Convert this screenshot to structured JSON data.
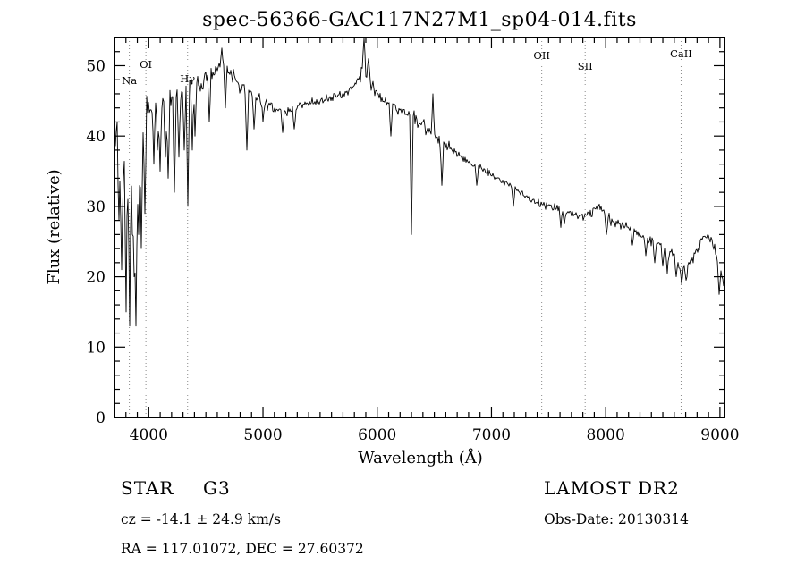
{
  "title": "spec-56366-GAC117N27M1_sp04-014.fits",
  "chart_data": {
    "type": "line",
    "title": "spec-56366-GAC117N27M1_sp04-014.fits",
    "xlabel": "Wavelength (Å)",
    "ylabel": "Flux (relative)",
    "xlim": [
      3700,
      9040
    ],
    "ylim": [
      0,
      54
    ],
    "x_ticks": [
      4000,
      5000,
      6000,
      7000,
      8000,
      9000
    ],
    "y_ticks": [
      0,
      10,
      20,
      30,
      40,
      50
    ],
    "x_minor_step": 100,
    "y_minor_step": 2,
    "grid": "off",
    "legend": "none",
    "line_color": "#000000",
    "marker_line_style": "dotted-gray",
    "line_markers": [
      {
        "label": "Na",
        "wavelength": 3830,
        "label_dy": 52
      },
      {
        "label": "OI",
        "wavelength": 3975,
        "label_dy": 34
      },
      {
        "label": "Hγ",
        "wavelength": 4340,
        "label_dy": 50
      },
      {
        "label": "OII",
        "wavelength": 7440,
        "label_dy": 24
      },
      {
        "label": "SII",
        "wavelength": 7820,
        "label_dy": 36
      },
      {
        "label": "CaII",
        "wavelength": 8660,
        "label_dy": 22
      }
    ],
    "continuum": [
      [
        3700,
        44
      ],
      [
        3720,
        40
      ],
      [
        3750,
        38
      ],
      [
        3780,
        36
      ],
      [
        3800,
        38
      ],
      [
        3830,
        42
      ],
      [
        3860,
        38
      ],
      [
        3900,
        33
      ],
      [
        3930,
        40
      ],
      [
        3960,
        42
      ],
      [
        4000,
        44
      ],
      [
        4050,
        45
      ],
      [
        4100,
        46
      ],
      [
        4150,
        44
      ],
      [
        4200,
        45
      ],
      [
        4250,
        46
      ],
      [
        4300,
        46
      ],
      [
        4350,
        47
      ],
      [
        4400,
        48
      ],
      [
        4450,
        47
      ],
      [
        4500,
        48
      ],
      [
        4550,
        49
      ],
      [
        4600,
        50
      ],
      [
        4650,
        50
      ],
      [
        4700,
        49
      ],
      [
        4750,
        48
      ],
      [
        4800,
        47
      ],
      [
        4850,
        46
      ],
      [
        4900,
        46
      ],
      [
        4950,
        45
      ],
      [
        5000,
        45
      ],
      [
        5100,
        44
      ],
      [
        5200,
        43.5
      ],
      [
        5300,
        44
      ],
      [
        5400,
        44.5
      ],
      [
        5500,
        45
      ],
      [
        5600,
        45.5
      ],
      [
        5700,
        46
      ],
      [
        5800,
        47
      ],
      [
        5850,
        48
      ],
      [
        5880,
        50
      ],
      [
        5900,
        49
      ],
      [
        5950,
        47
      ],
      [
        6000,
        46
      ],
      [
        6100,
        44.5
      ],
      [
        6200,
        43.5
      ],
      [
        6300,
        43
      ],
      [
        6400,
        41.5
      ],
      [
        6500,
        40
      ],
      [
        6563,
        39
      ],
      [
        6600,
        38.5
      ],
      [
        6700,
        37.5
      ],
      [
        6800,
        36.5
      ],
      [
        6900,
        35.5
      ],
      [
        7000,
        34.5
      ],
      [
        7100,
        33.5
      ],
      [
        7200,
        32.5
      ],
      [
        7300,
        31.5
      ],
      [
        7400,
        30.5
      ],
      [
        7500,
        30
      ],
      [
        7600,
        29.5
      ],
      [
        7700,
        29
      ],
      [
        7800,
        28.5
      ],
      [
        7900,
        29.5
      ],
      [
        7950,
        30
      ],
      [
        8000,
        28.5
      ],
      [
        8100,
        27.5
      ],
      [
        8200,
        27
      ],
      [
        8300,
        26
      ],
      [
        8400,
        25
      ],
      [
        8500,
        24.5
      ],
      [
        8600,
        23
      ],
      [
        8650,
        21.5
      ],
      [
        8700,
        21
      ],
      [
        8750,
        22
      ],
      [
        8800,
        24
      ],
      [
        8850,
        25.5
      ],
      [
        8900,
        26
      ],
      [
        8950,
        24
      ],
      [
        9000,
        21
      ],
      [
        9040,
        18
      ]
    ],
    "features": [
      [
        3740,
        28
      ],
      [
        3762,
        21
      ],
      [
        3798,
        15
      ],
      [
        3820,
        31
      ],
      [
        3835,
        13
      ],
      [
        3856,
        26
      ],
      [
        3870,
        20
      ],
      [
        3889,
        13
      ],
      [
        3912,
        26
      ],
      [
        3933,
        24
      ],
      [
        3970,
        29
      ],
      [
        4045,
        36
      ],
      [
        4077,
        38
      ],
      [
        4101,
        35
      ],
      [
        4144,
        37
      ],
      [
        4170,
        34
      ],
      [
        4227,
        32
      ],
      [
        4260,
        37
      ],
      [
        4310,
        38
      ],
      [
        4340,
        30
      ],
      [
        4383,
        38
      ],
      [
        4405,
        40
      ],
      [
        4530,
        42
      ],
      [
        4640,
        52.5
      ],
      [
        4668,
        44
      ],
      [
        4861,
        38
      ],
      [
        4920,
        41
      ],
      [
        5000,
        42
      ],
      [
        5170,
        40.5
      ],
      [
        5270,
        41
      ],
      [
        5888,
        54.5
      ],
      [
        5920,
        51
      ],
      [
        6122,
        40
      ],
      [
        6300,
        26
      ],
      [
        6490,
        46
      ],
      [
        6563,
        33
      ],
      [
        6870,
        33
      ],
      [
        7190,
        30
      ],
      [
        7605,
        27
      ],
      [
        7640,
        27.5
      ],
      [
        8005,
        26
      ],
      [
        8230,
        24.5
      ],
      [
        8350,
        23
      ],
      [
        8430,
        22
      ],
      [
        8498,
        21.5
      ],
      [
        8542,
        20.5
      ],
      [
        8620,
        20
      ],
      [
        8662,
        19
      ],
      [
        8700,
        19.5
      ],
      [
        8990,
        17.5
      ]
    ],
    "noise": [
      {
        "from": 3700,
        "to": 3995,
        "amp": 6
      },
      {
        "from": 3995,
        "to": 4350,
        "amp": 3.2
      },
      {
        "from": 4350,
        "to": 4750,
        "amp": 2.2
      },
      {
        "from": 4750,
        "to": 5050,
        "amp": 1.7
      },
      {
        "from": 5050,
        "to": 5850,
        "amp": 1.2
      },
      {
        "from": 5850,
        "to": 6250,
        "amp": 1.3
      },
      {
        "from": 6250,
        "to": 6650,
        "amp": 1.3
      },
      {
        "from": 6650,
        "to": 7450,
        "amp": 0.9
      },
      {
        "from": 7450,
        "to": 8350,
        "amp": 1.0
      },
      {
        "from": 8350,
        "to": 9045,
        "amp": 1.3
      }
    ],
    "seed": 20130314
  },
  "footer": {
    "object_class": "STAR",
    "subclass": "G3",
    "survey": "LAMOST DR2",
    "velocity": "cz = -14.1 ± 24.9 km/s",
    "obs_date": "Obs-Date: 20130314",
    "coordinates": "RA = 117.01072, DEC = 27.60372"
  }
}
